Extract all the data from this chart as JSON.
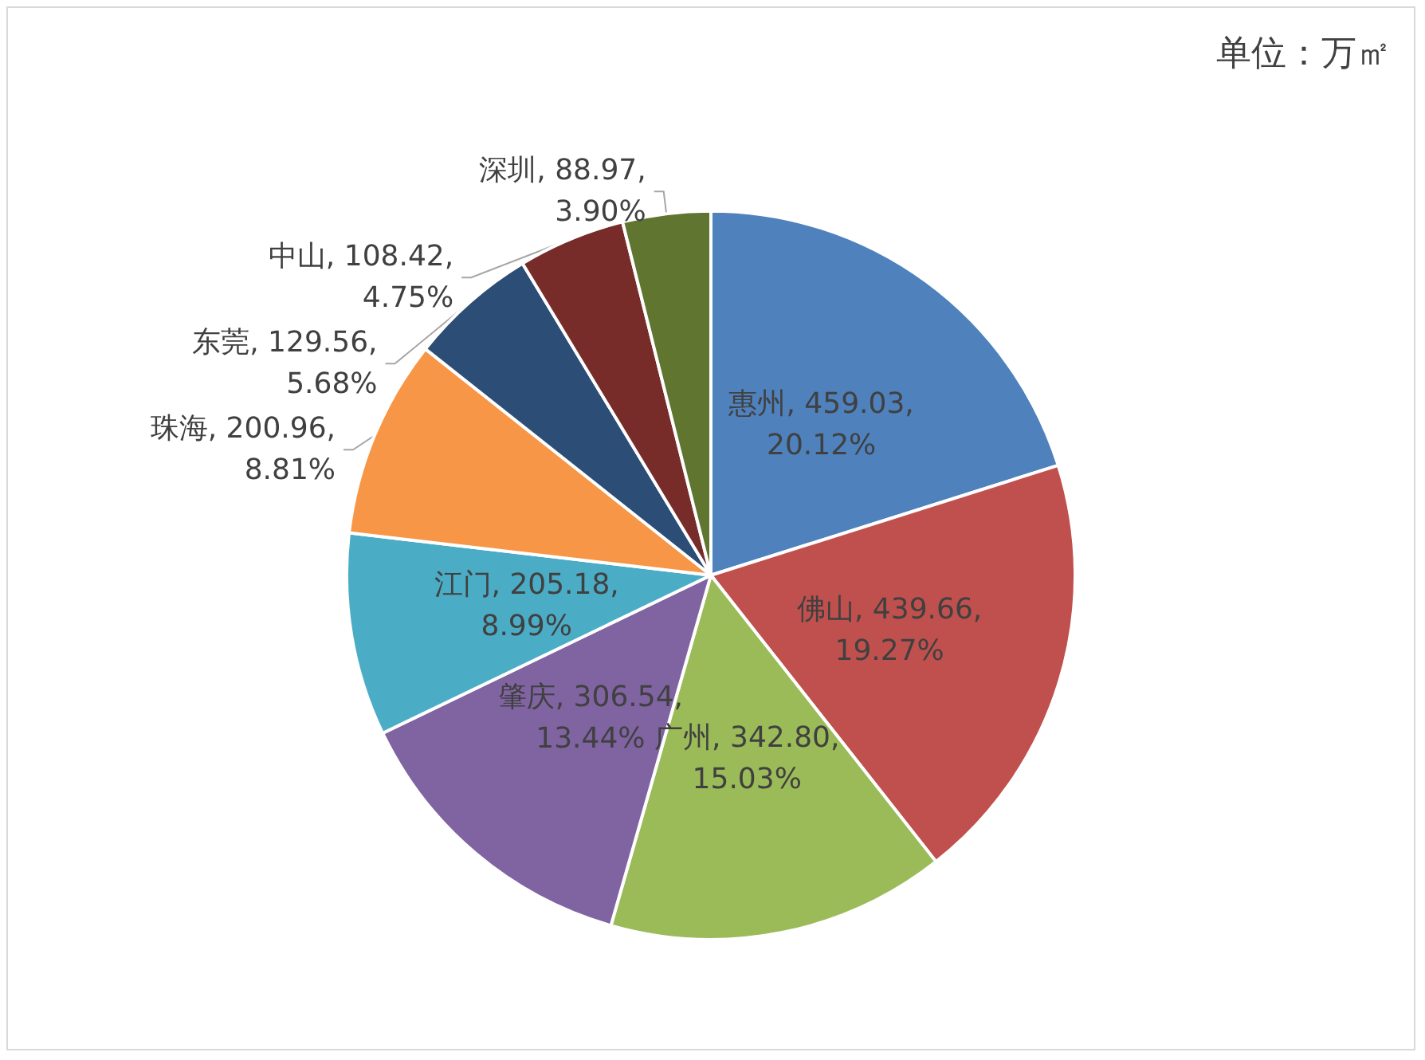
{
  "chart_data": {
    "type": "pie",
    "annotations": [
      "单位：万㎡"
    ],
    "categories": [
      "惠州",
      "佛山",
      "广州",
      "肇庆",
      "江门",
      "珠海",
      "东莞",
      "中山",
      "深圳"
    ],
    "values": [
      459.03,
      439.66,
      342.8,
      306.54,
      205.18,
      200.96,
      129.56,
      108.42,
      88.97
    ],
    "value_labels": [
      "459.03, 20.12%",
      "439.66, 19.27%",
      "342.80, 15.03%",
      "306.54, 13.44%",
      "205.18, 8.99%",
      "200.96, 8.81%",
      "129.56, 5.68%",
      "108.42, 4.75%",
      "88.97, 3.90%"
    ],
    "colors": [
      "#4f81bd",
      "#c0504d",
      "#9bbb59",
      "#8064a2",
      "#4bacc6",
      "#f79646",
      "#2c4d75",
      "#772c2a",
      "#5f7530"
    ],
    "legend": false
  }
}
